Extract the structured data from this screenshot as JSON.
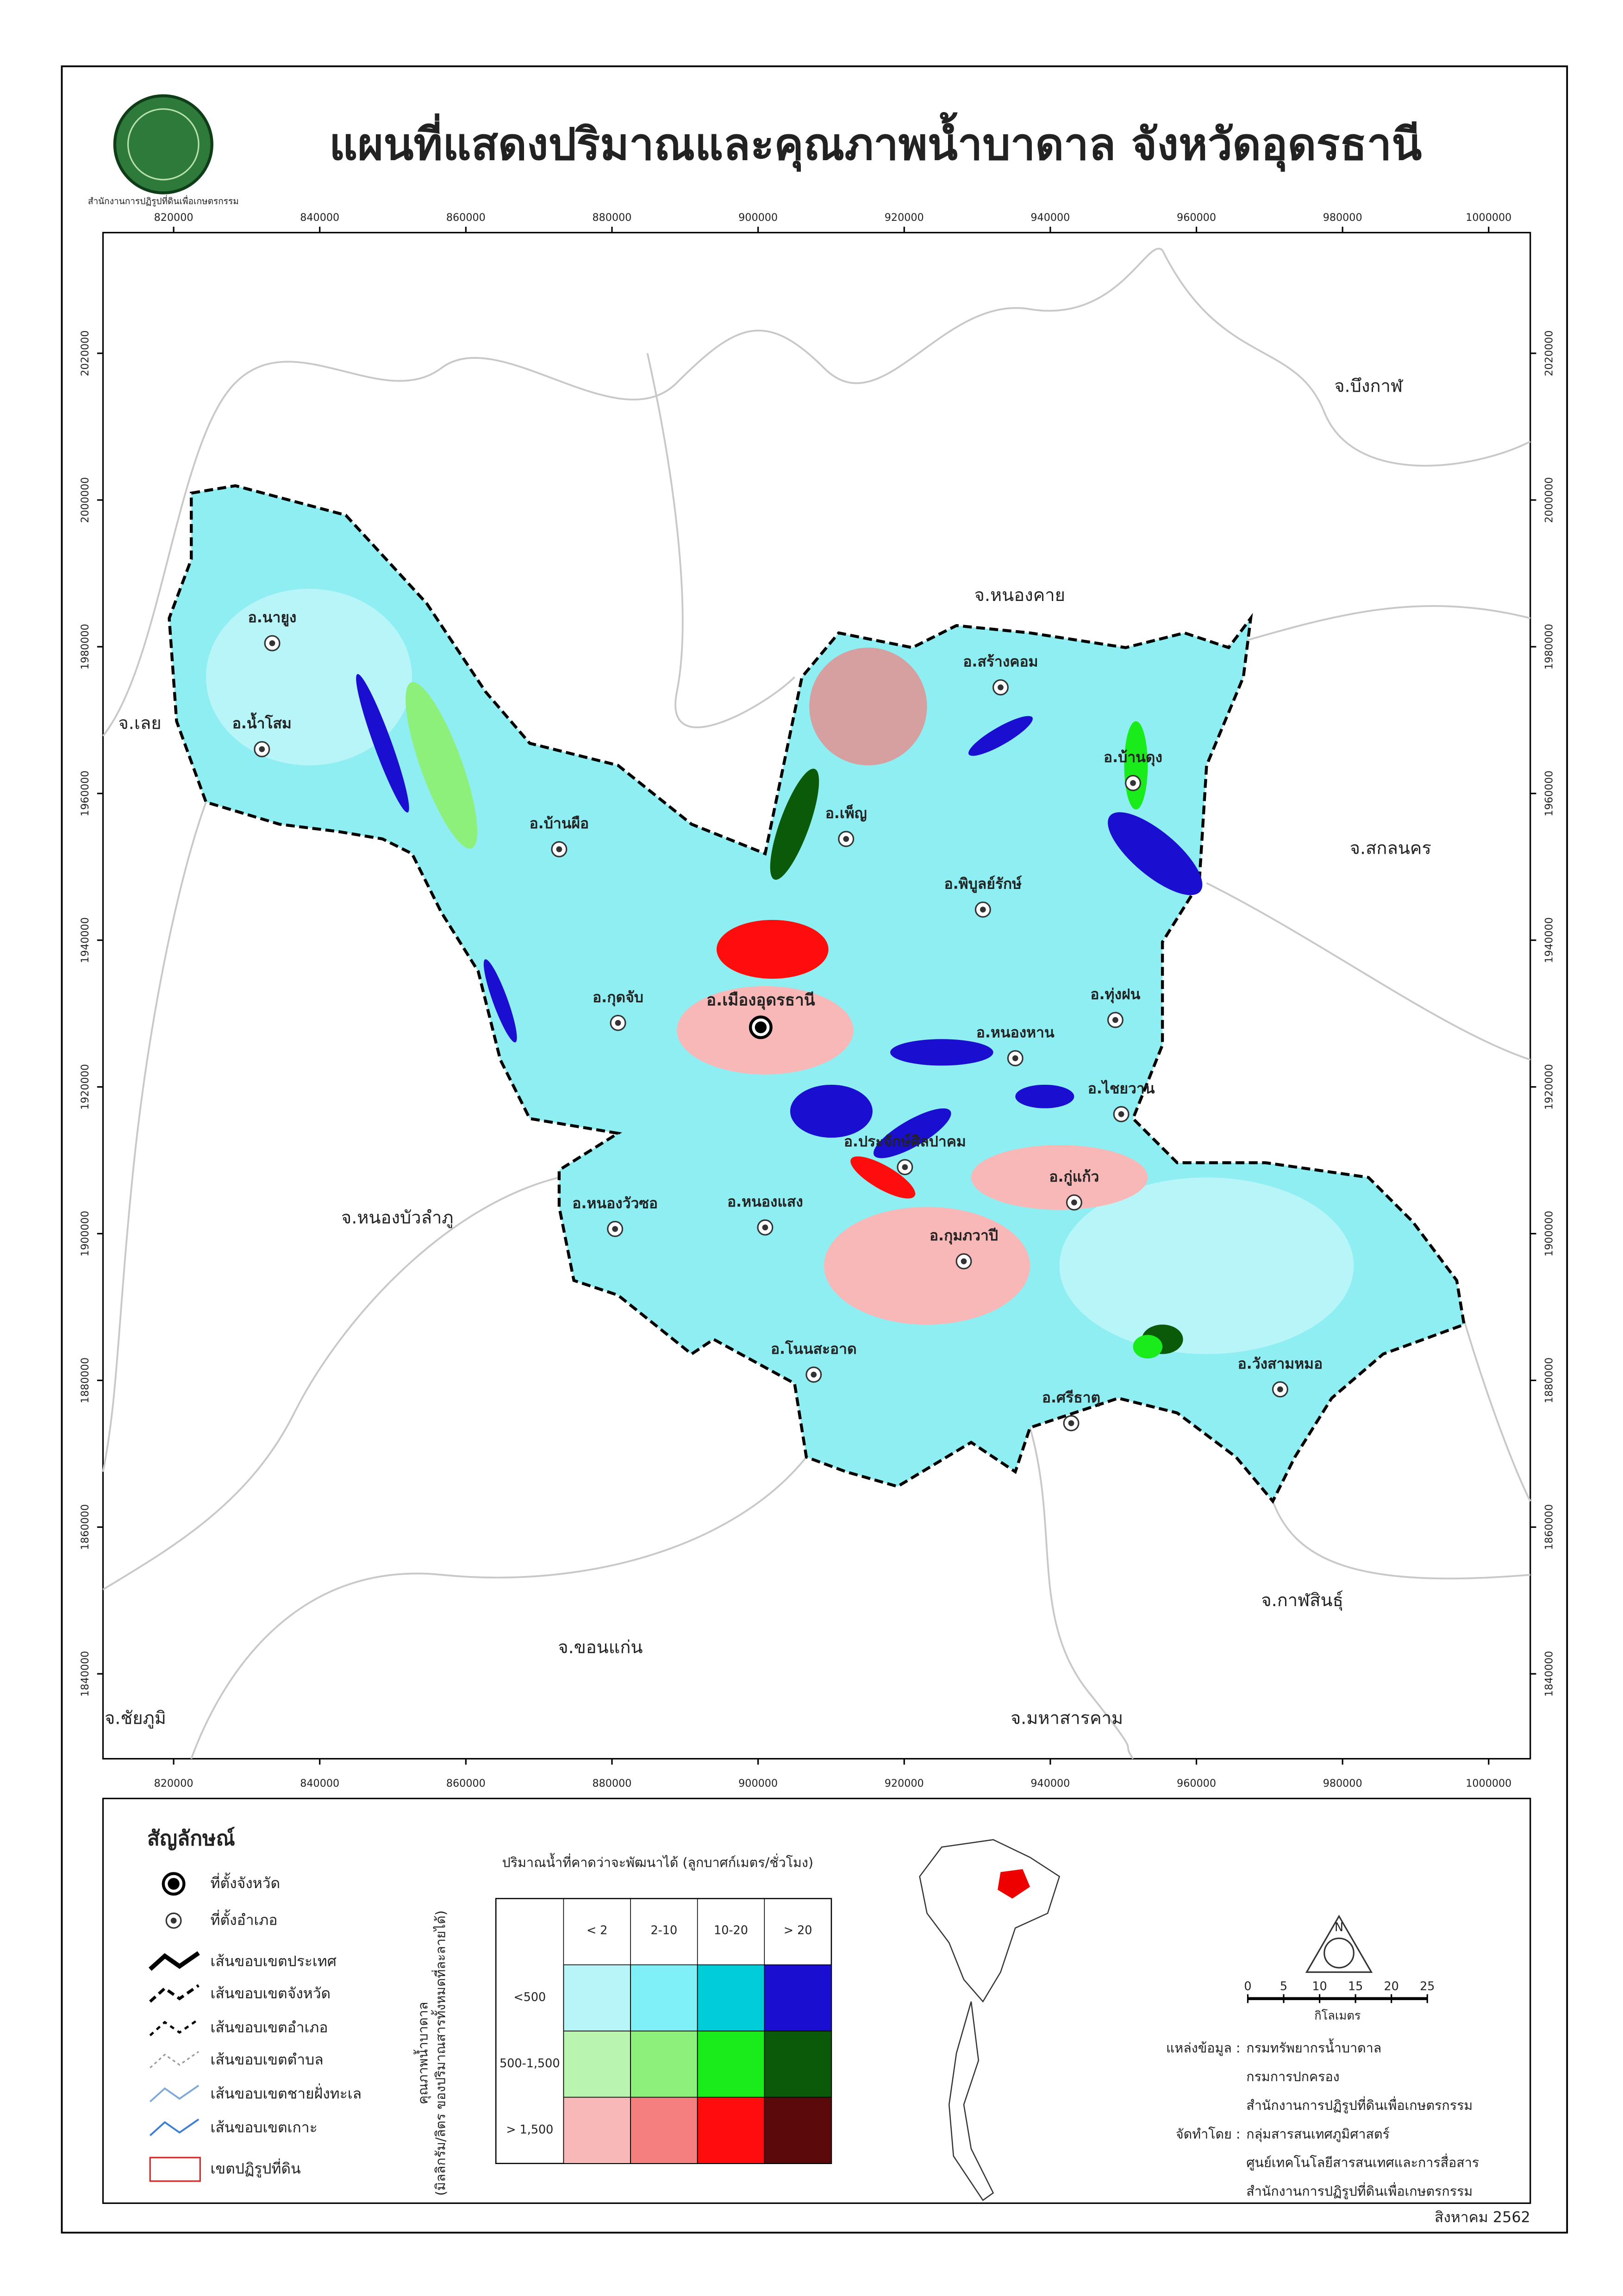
{
  "header": {
    "title": "แผนที่แสดงปริมาณและคุณภาพน้ำบาดาล จังหวัดอุดรธานี",
    "logo_text": "สำนักงานการปฏิรูปที่ดินเพื่อเกษตรกรรม"
  },
  "map": {
    "xticks": [
      820000,
      840000,
      860000,
      880000,
      900000,
      920000,
      940000,
      960000,
      980000,
      1000000
    ],
    "yticks": [
      1840000,
      1860000,
      1880000,
      1900000,
      1920000,
      1940000,
      1960000,
      1980000,
      2000000,
      2020000
    ],
    "provinces": [
      "จ.บึงกาฬ",
      "จ.หนองคาย",
      "จ.เลย",
      "จ.สกลนคร",
      "จ.หนองบัวลำภู",
      "จ.กาฬสินธุ์",
      "จ.ขอนแก่น",
      "จ.ชัยภูมิ",
      "จ.มหาสารคาม"
    ],
    "capital": "อ.เมืองอุดรธานี",
    "districts": [
      "อ.นายูง",
      "อ.น้ำโสม",
      "อ.บ้านผือ",
      "อ.กุดจับ",
      "อ.หนองวัวซอ",
      "อ.หนองแสง",
      "อ.ประจักษ์ศิลปาคม",
      "อ.กุมภวาปี",
      "อ.โนนสะอาด",
      "อ.ศรีธาตุ",
      "อ.วังสามหมอ",
      "อ.กู่แก้ว",
      "อ.ไชยวาน",
      "อ.ทุ่งฝน",
      "อ.หนองหาน",
      "อ.พิบูลย์รักษ์",
      "อ.เพ็ญ",
      "อ.สร้างคอม",
      "อ.บ้านดุง"
    ]
  },
  "legend": {
    "title": "สัญลักษณ์",
    "items": [
      "ที่ตั้งจังหวัด",
      "ที่ตั้งอำเภอ",
      "เส้นขอบเขตประเทศ",
      "เส้นขอบเขตจังหวัด",
      "เส้นขอบเขตอำเภอ",
      "เส้นขอบเขตตำบล",
      "เส้นขอบเขตชายฝั่งทะเล",
      "เส้นขอบเขตเกาะ",
      "เขตปฏิรูปที่ดิน"
    ]
  },
  "matrix": {
    "title": "ปริมาณน้ำที่คาดว่าจะพัฒนาได้ (ลูกบาศก์เมตร/ชั่วโมง)",
    "y_title": "คุณภาพน้ำบาดาล",
    "y_subtitle": "(มิลลิกรัม/ลิตร ของปริมาณสารทั้งหมดที่ละลายได้)",
    "columns": [
      "< 2",
      "2-10",
      "10-20",
      "> 20"
    ],
    "rows": [
      {
        "label": "<500",
        "colors": [
          "#b8f5f8",
          "#7ff0f5",
          "#00cdd8",
          "#1a0fd0"
        ]
      },
      {
        "label": "500-1,500",
        "colors": [
          "#b9f5b0",
          "#8cf07a",
          "#1aeb1a",
          "#0a5a0a"
        ]
      },
      {
        "label": "> 1,500",
        "colors": [
          "#f9b8b8",
          "#f57f7f",
          "#ff0d0d",
          "#5a0a0a"
        ]
      }
    ]
  },
  "north": "N",
  "scale": {
    "ticks": [
      0,
      5,
      10,
      15,
      20,
      25
    ],
    "unit": "กิโลเมตร"
  },
  "credits": [
    {
      "label": "แหล่งข้อมูล :",
      "lines": [
        "กรมทรัพยากรน้ำบาดาล",
        "กรมการปกครอง",
        "สำนักงานการปฏิรูปที่ดินเพื่อเกษตรกรรม"
      ]
    },
    {
      "label": "จัดทำโดย :",
      "lines": [
        "กลุ่มสารสนเทศภูมิศาสตร์",
        "ศูนย์เทคโนโลยีสารสนเทศและการสื่อสาร",
        "สำนักงานการปฏิรูปที่ดินเพื่อเกษตรกรรม"
      ]
    }
  ],
  "date": "สิงหาคม 2562"
}
